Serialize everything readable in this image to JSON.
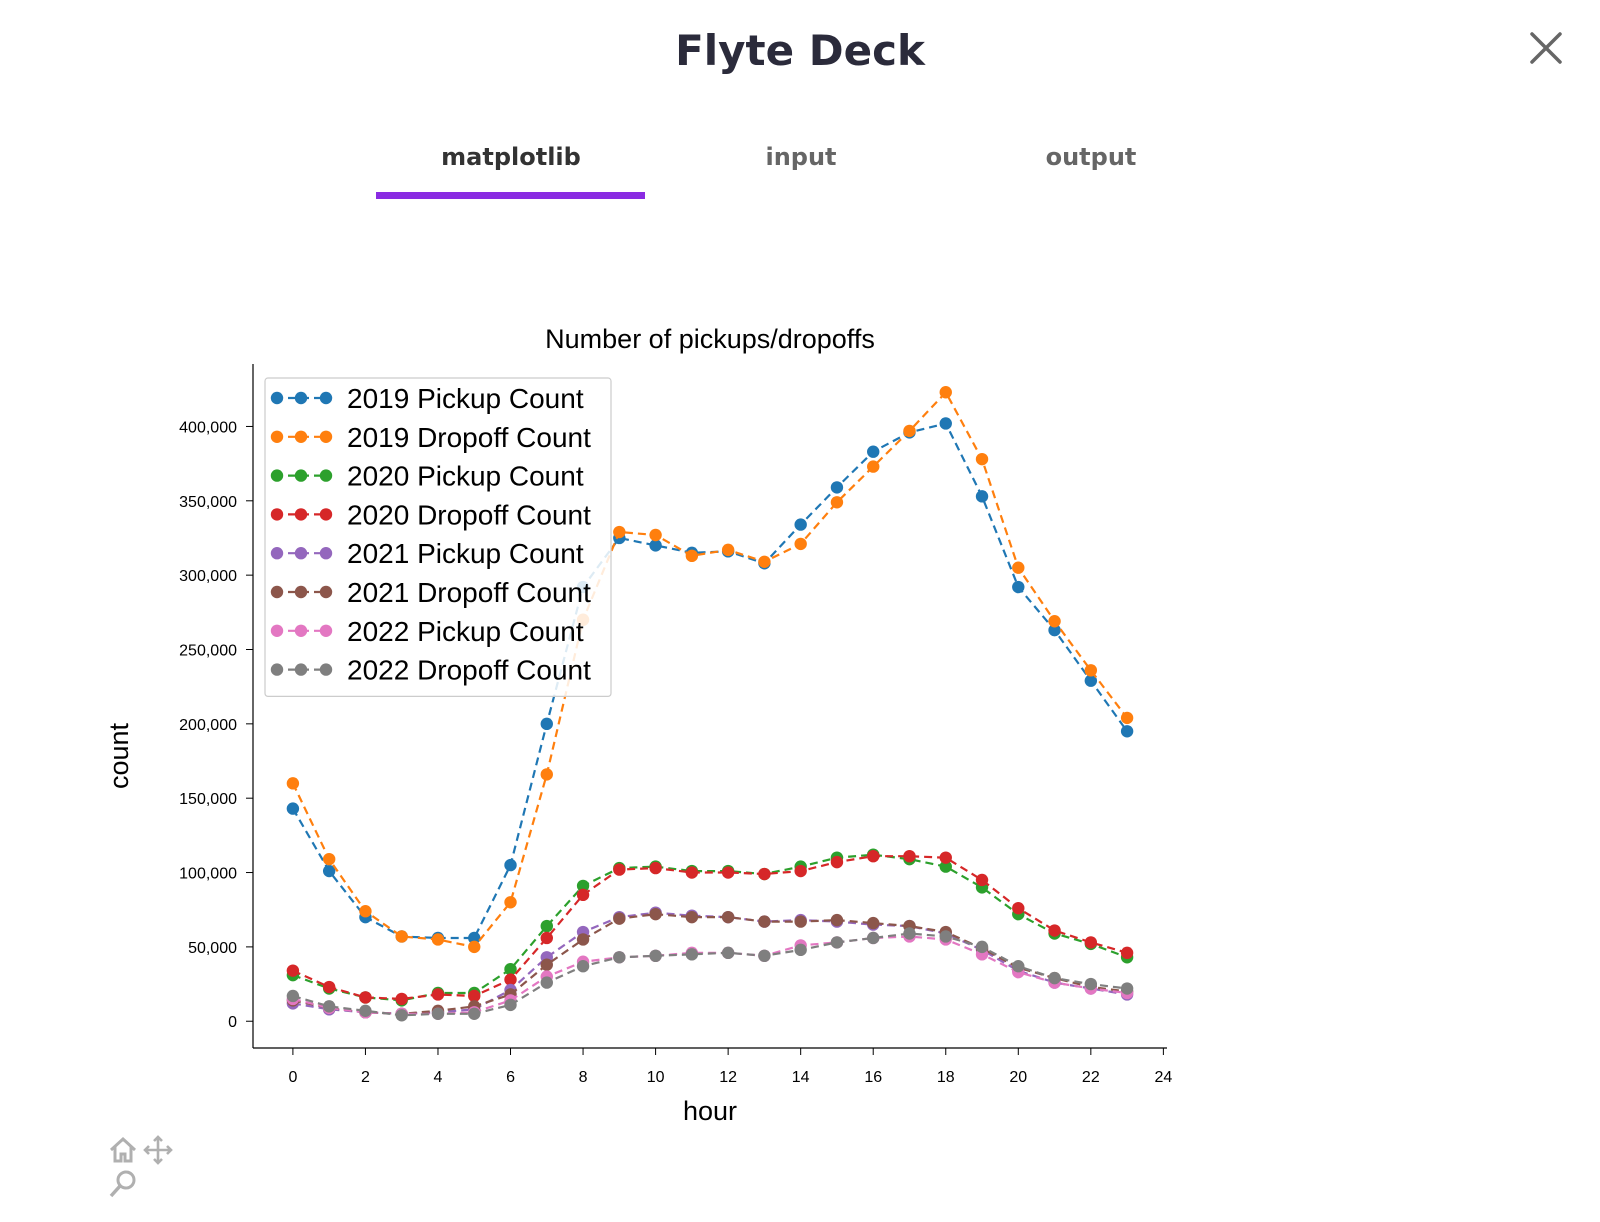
{
  "app": {
    "title": "Flyte Deck"
  },
  "tabs": [
    {
      "label": "matplotlib",
      "active": true
    },
    {
      "label": "input",
      "active": false
    },
    {
      "label": "output",
      "active": false
    }
  ],
  "colors": {
    "accent": "#8a2be2"
  },
  "toolbar": {
    "icons": [
      "home-icon",
      "pan-icon",
      "zoom-icon"
    ]
  },
  "chart_data": {
    "type": "line",
    "title": "Number of pickups/dropoffs",
    "xlabel": "hour",
    "ylabel": "count",
    "xlim": [
      -1.1,
      24.1
    ],
    "ylim": [
      -18000,
      442000
    ],
    "xticks": [
      0,
      2,
      4,
      6,
      8,
      10,
      12,
      14,
      16,
      18,
      20,
      22,
      24
    ],
    "xtick_labels": [
      "0",
      "2",
      "4",
      "6",
      "8",
      "10",
      "12",
      "14",
      "16",
      "18",
      "20",
      "22",
      "24"
    ],
    "yticks": [
      0,
      50000,
      100000,
      150000,
      200000,
      250000,
      300000,
      350000,
      400000
    ],
    "ytick_labels": [
      "0",
      "50,000",
      "100,000",
      "150,000",
      "200,000",
      "250,000",
      "300,000",
      "350,000",
      "400,000"
    ],
    "grid": false,
    "legend_position": "top-left",
    "line_style": "dashed with circle markers",
    "x": [
      0,
      1,
      2,
      3,
      4,
      5,
      6,
      7,
      8,
      9,
      10,
      11,
      12,
      13,
      14,
      15,
      16,
      17,
      18,
      19,
      20,
      21,
      22,
      23
    ],
    "series": [
      {
        "name": "2019 Pickup Count",
        "color": "#1f77b4",
        "values": [
          143000,
          101000,
          70000,
          57000,
          56000,
          56000,
          105000,
          200000,
          292000,
          325000,
          320000,
          315000,
          316000,
          308000,
          334000,
          359000,
          383000,
          396000,
          402000,
          353000,
          292000,
          263000,
          229000,
          195000
        ]
      },
      {
        "name": "2019 Dropoff Count",
        "color": "#ff7f0e",
        "values": [
          160000,
          109000,
          74000,
          57000,
          55000,
          50000,
          80000,
          166000,
          270000,
          329000,
          327000,
          313000,
          317000,
          309000,
          321000,
          349000,
          373000,
          397000,
          423000,
          378000,
          305000,
          269000,
          236000,
          204000
        ]
      },
      {
        "name": "2020 Pickup Count",
        "color": "#2ca02c",
        "values": [
          31000,
          22000,
          16000,
          14000,
          19000,
          19000,
          35000,
          64000,
          91000,
          103000,
          104000,
          101000,
          101000,
          99000,
          104000,
          110000,
          112000,
          109000,
          104000,
          90000,
          72000,
          59000,
          52000,
          43000
        ]
      },
      {
        "name": "2020 Dropoff Count",
        "color": "#d62728",
        "values": [
          34000,
          23000,
          16000,
          15000,
          18000,
          17000,
          28000,
          56000,
          85000,
          102000,
          103000,
          100000,
          100000,
          99000,
          101000,
          107000,
          111000,
          111000,
          110000,
          95000,
          76000,
          61000,
          53000,
          46000
        ]
      },
      {
        "name": "2021 Pickup Count",
        "color": "#9467bd",
        "values": [
          12000,
          8000,
          6000,
          5000,
          6000,
          8000,
          21000,
          43000,
          60000,
          70000,
          73000,
          71000,
          70000,
          67000,
          68000,
          67000,
          65000,
          64000,
          59000,
          48000,
          34000,
          26000,
          22000,
          18000
        ]
      },
      {
        "name": "2021 Dropoff Count",
        "color": "#8c564b",
        "values": [
          14000,
          9000,
          6000,
          5000,
          7000,
          10000,
          18000,
          38000,
          55000,
          69000,
          72000,
          70000,
          70000,
          67000,
          67000,
          68000,
          66000,
          64000,
          60000,
          49000,
          36000,
          29000,
          23000,
          20000
        ]
      },
      {
        "name": "2022 Pickup Count",
        "color": "#e377c2",
        "values": [
          15000,
          9000,
          6000,
          5000,
          5000,
          6000,
          14000,
          30000,
          40000,
          43000,
          44000,
          46000,
          46000,
          44000,
          51000,
          53000,
          56000,
          57000,
          55000,
          45000,
          33000,
          26000,
          22000,
          19000
        ]
      },
      {
        "name": "2022 Dropoff Count",
        "color": "#7f7f7f",
        "values": [
          17000,
          10000,
          7000,
          4000,
          5000,
          5000,
          11000,
          26000,
          37000,
          43000,
          44000,
          45000,
          46000,
          44000,
          48000,
          53000,
          56000,
          59000,
          57000,
          50000,
          37000,
          29000,
          25000,
          22000
        ]
      }
    ]
  }
}
